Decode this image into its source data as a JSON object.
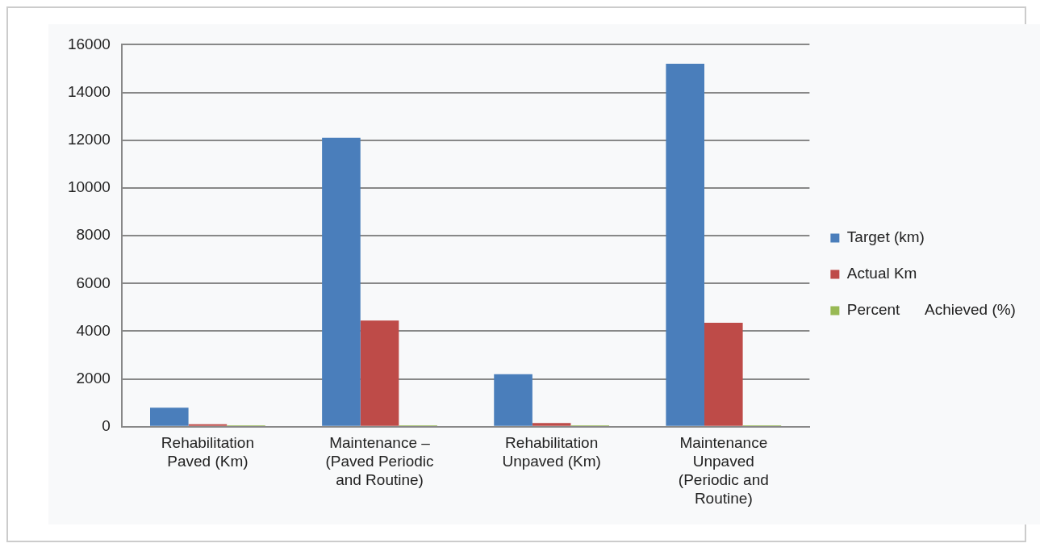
{
  "chart_data": {
    "type": "bar",
    "categories": [
      "Rehabilitation Paved (Km)",
      "Maintenance – (Paved Periodic and Routine)",
      "Rehabilitation Unpaved (Km)",
      "Maintenance Unpaved (Periodic and Routine)"
    ],
    "series": [
      {
        "name": "Target (km)",
        "color": "#4a7ebb",
        "values": [
          800,
          12100,
          2200,
          15200
        ]
      },
      {
        "name": "Actual Km",
        "color": "#be4b48",
        "values": [
          100,
          4450,
          150,
          4350
        ]
      },
      {
        "name": "Percent      Achieved (%)",
        "color": "#98b954",
        "values": [
          60,
          60,
          60,
          60
        ]
      }
    ],
    "ylim": [
      0,
      16000
    ],
    "yticks": [
      0,
      2000,
      4000,
      6000,
      8000,
      10000,
      12000,
      14000,
      16000
    ],
    "grid": "y",
    "legend": "right"
  }
}
